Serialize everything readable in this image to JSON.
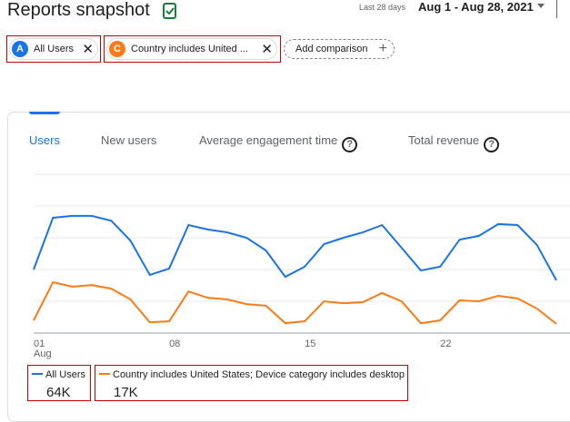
{
  "header": {
    "title": "Reports snapshot",
    "date_prefix": "Last 28 days",
    "date_range": "Aug 1 - Aug 28, 2021"
  },
  "comparisons": [
    {
      "badge": "A",
      "label": "All Users"
    },
    {
      "badge": "C",
      "label": "Country includes United ..."
    }
  ],
  "add_comparison": "Add comparison",
  "tabs": [
    "Users",
    "New users",
    "Average engagement time",
    "Total revenue"
  ],
  "chart_data": {
    "type": "line",
    "categories": [
      "01",
      null,
      null,
      null,
      null,
      null,
      null,
      "08",
      null,
      null,
      null,
      null,
      null,
      null,
      "15",
      null,
      null,
      null,
      null,
      null,
      null,
      "22",
      null,
      null,
      null,
      null,
      null,
      null
    ],
    "month_label": "Aug",
    "ylim": [
      0,
      5
    ],
    "yticks": [
      0,
      1,
      2,
      3,
      4,
      5
    ],
    "grid": true,
    "series": [
      {
        "name": "All Users",
        "color": "#1a73e8",
        "total": "64K",
        "values": [
          2.0,
          3.63,
          3.69,
          3.69,
          3.54,
          2.91,
          1.83,
          2.03,
          3.4,
          3.26,
          3.17,
          3.0,
          2.6,
          1.77,
          2.09,
          2.8,
          3.0,
          3.17,
          3.4,
          2.69,
          1.97,
          2.09,
          2.94,
          3.06,
          3.43,
          3.4,
          2.77,
          1.66
        ]
      },
      {
        "name": "Country includes United States; Device category includes desktop",
        "color": "#fa7b17",
        "total": "17K",
        "values": [
          0.4,
          1.6,
          1.46,
          1.51,
          1.4,
          1.06,
          0.34,
          0.37,
          1.31,
          1.11,
          1.06,
          0.91,
          0.86,
          0.31,
          0.37,
          1.0,
          0.94,
          0.97,
          1.26,
          1.0,
          0.31,
          0.4,
          1.03,
          1.0,
          1.17,
          1.09,
          0.77,
          0.29
        ]
      }
    ]
  }
}
